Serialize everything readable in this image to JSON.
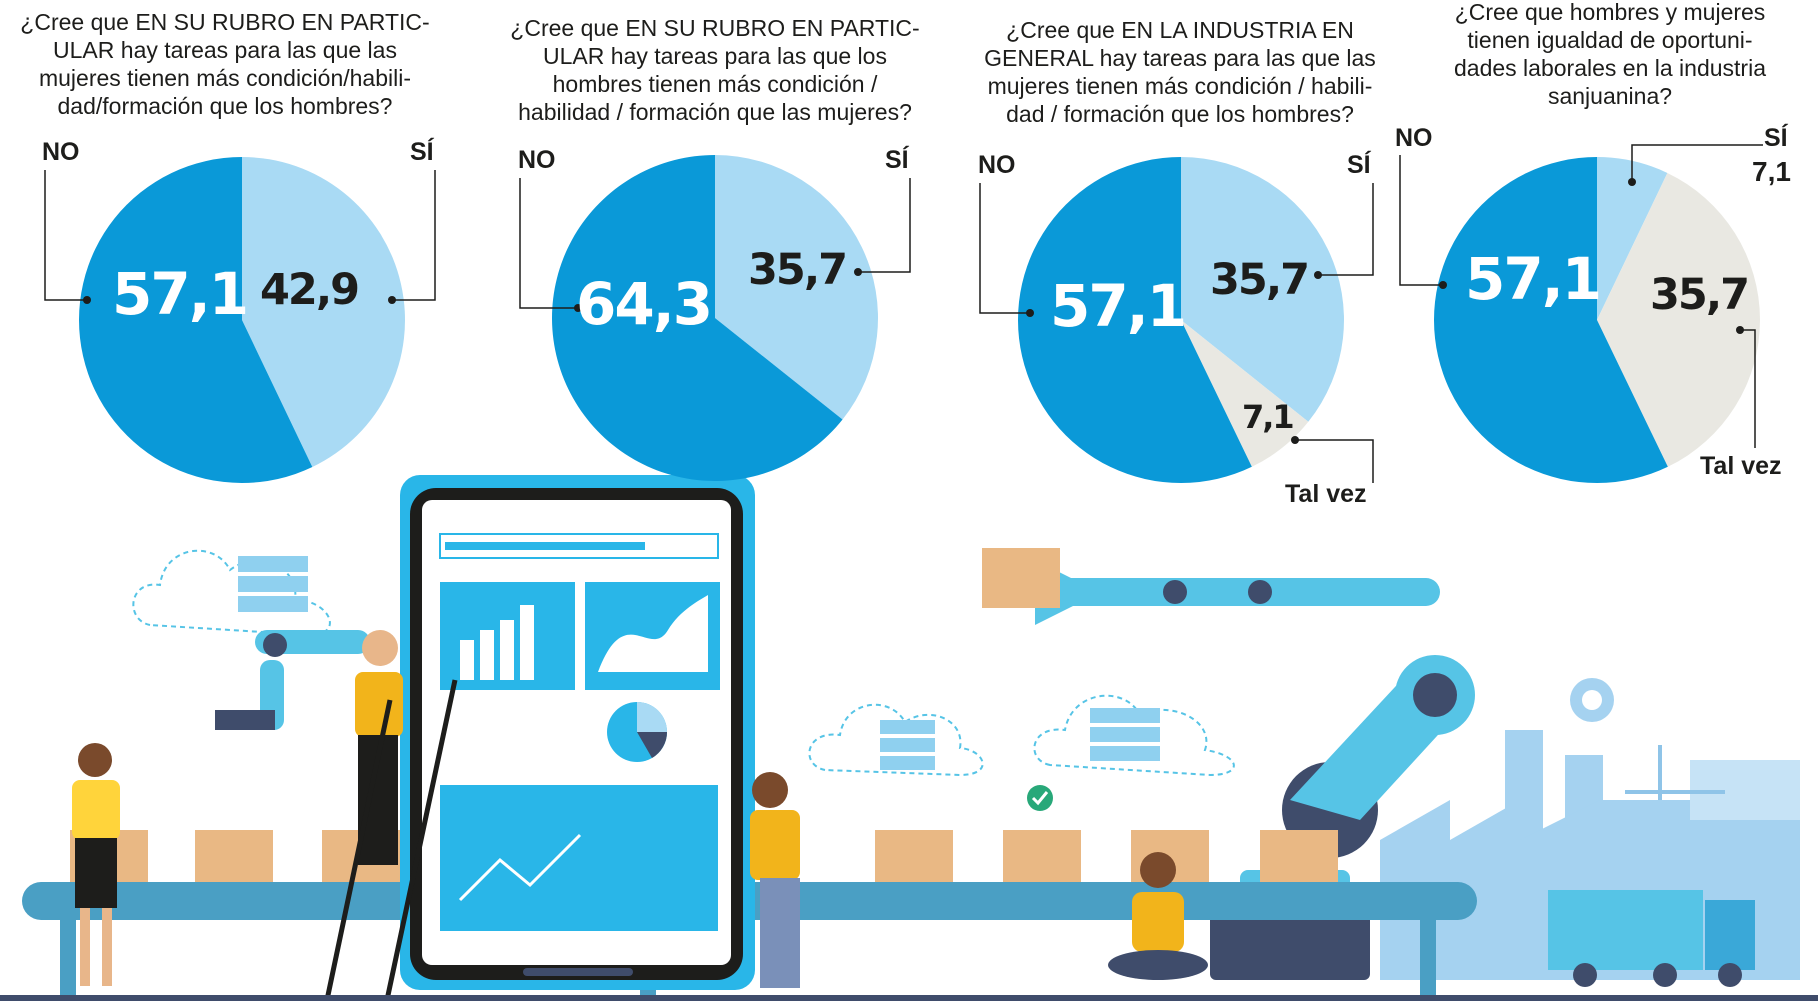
{
  "colors": {
    "no": "#0a99d8",
    "si": "#a9daf4",
    "talvez": "#e9e8e2",
    "leader": "#1d1d1b",
    "conveyor": "#4a9fc4",
    "phone": "#29b6e8",
    "robot": "#56c4e6",
    "factory": "#a5d2f0",
    "box": "#e9b884",
    "baseline": "#3f4c6b"
  },
  "chart_data": [
    {
      "type": "pie",
      "title": "¿Cree que EN SU RUBRO EN PARTICULAR hay tareas para las que las mujeres tienen más condición/habilidad/formación que los hombres?",
      "slices": [
        {
          "label": "NO",
          "value": 57.1,
          "value_text": "57,1",
          "color": "#0a99d8"
        },
        {
          "label": "SÍ",
          "value": 42.9,
          "value_text": "42,9",
          "color": "#a9daf4"
        }
      ]
    },
    {
      "type": "pie",
      "title": "¿Cree que EN SU RUBRO EN PARTICULAR hay tareas para las que los hombres tienen más condición / habilidad / formación que las mujeres?",
      "slices": [
        {
          "label": "NO",
          "value": 64.3,
          "value_text": "64,3",
          "color": "#0a99d8"
        },
        {
          "label": "SÍ",
          "value": 35.7,
          "value_text": "35,7",
          "color": "#a9daf4"
        }
      ]
    },
    {
      "type": "pie",
      "title": "¿Cree que EN LA INDUSTRIA EN GENERAL hay tareas para las que las mujeres tienen más condición / habilidad / formación que los hombres?",
      "slices": [
        {
          "label": "NO",
          "value": 57.1,
          "value_text": "57,1",
          "color": "#0a99d8"
        },
        {
          "label": "SÍ",
          "value": 35.7,
          "value_text": "35,7",
          "color": "#a9daf4"
        },
        {
          "label": "Tal vez",
          "value": 7.1,
          "value_text": "7,1",
          "color": "#e9e8e2"
        }
      ]
    },
    {
      "type": "pie",
      "title": "¿Cree que hombres y mujeres tienen igualdad de oportunidades laborales en la industria sanjuanina?",
      "slices": [
        {
          "label": "NO",
          "value": 57.1,
          "value_text": "57,1",
          "color": "#0a99d8"
        },
        {
          "label": "SÍ",
          "value": 7.1,
          "value_text": "7,1",
          "color": "#a9daf4"
        },
        {
          "label": "Tal vez",
          "value": 35.7,
          "value_text": "35,7",
          "color": "#e9e8e2"
        }
      ]
    }
  ],
  "questions": [
    {
      "lines": [
        "¿Cree que EN SU RUBRO EN PARTIC-",
        "ULAR hay tareas para las que las",
        "mujeres tienen más condición/habili-",
        "dad/formación que los hombres?"
      ]
    },
    {
      "lines": [
        "¿Cree que EN SU RUBRO EN PARTIC-",
        "ULAR hay tareas para las que los",
        "hombres tienen más condición /",
        "habilidad / formación que las mujeres?"
      ]
    },
    {
      "lines": [
        "¿Cree que EN LA INDUSTRIA EN",
        "GENERAL hay tareas para las que las",
        "mujeres tienen más condición / habili-",
        "dad / formación que los hombres?"
      ]
    },
    {
      "lines": [
        "¿Cree que hombres y mujeres",
        "tienen igualdad de oportuni-",
        "dades laborales en la industria",
        "sanjuanina?"
      ]
    }
  ],
  "labels": {
    "no": "NO",
    "si": "SÍ",
    "talvez": "Tal vez"
  }
}
